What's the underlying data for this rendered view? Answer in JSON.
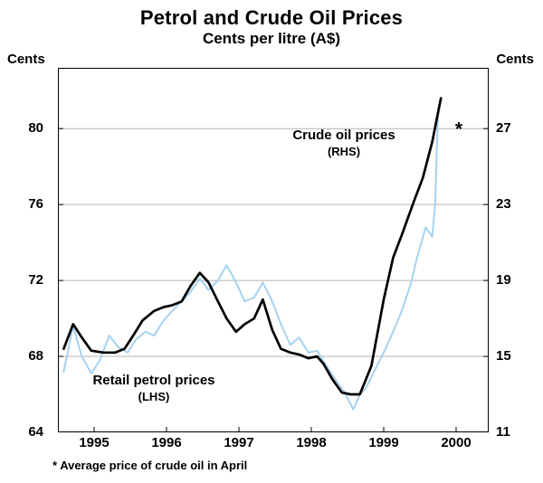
{
  "chart_data": {
    "type": "line",
    "title": "Petrol and Crude Oil Prices",
    "subtitle": "Cents per litre (A$)",
    "footnote": "* Average price of crude oil in April",
    "grid": {
      "show_horizontal": true,
      "color": "#b3b3b3"
    },
    "frame_color": "#000000",
    "x_axis": {
      "range": [
        1994.5,
        2000.45
      ],
      "tick_values": [
        1995,
        1996,
        1997,
        1998,
        1999,
        2000
      ],
      "tick_labels": [
        "1995",
        "1996",
        "1997",
        "1998",
        "1999",
        "2000"
      ]
    },
    "left_axis": {
      "label": "Cents",
      "range": [
        64,
        83.2
      ],
      "ticks": [
        64,
        68,
        72,
        76,
        80
      ]
    },
    "right_axis": {
      "label": "Cents",
      "range": [
        11,
        30.2
      ],
      "ticks": [
        11,
        15,
        19,
        23,
        27
      ]
    },
    "series": [
      {
        "name": "Crude oil prices (RHS)",
        "axis": "right",
        "color": "#a6d2ef",
        "stroke_width": 2,
        "points": [
          [
            1994.58,
            14.2
          ],
          [
            1994.71,
            16.6
          ],
          [
            1994.83,
            15.0
          ],
          [
            1994.96,
            14.1
          ],
          [
            1995.08,
            14.8
          ],
          [
            1995.21,
            16.1
          ],
          [
            1995.33,
            15.5
          ],
          [
            1995.46,
            15.2
          ],
          [
            1995.58,
            15.9
          ],
          [
            1995.71,
            16.3
          ],
          [
            1995.83,
            16.1
          ],
          [
            1995.96,
            16.9
          ],
          [
            1996.08,
            17.4
          ],
          [
            1996.21,
            17.9
          ],
          [
            1996.33,
            18.4
          ],
          [
            1996.46,
            19.1
          ],
          [
            1996.58,
            18.5
          ],
          [
            1996.71,
            19.0
          ],
          [
            1996.83,
            19.8
          ],
          [
            1996.96,
            18.9
          ],
          [
            1997.08,
            17.9
          ],
          [
            1997.21,
            18.1
          ],
          [
            1997.33,
            18.9
          ],
          [
            1997.46,
            17.9
          ],
          [
            1997.58,
            16.7
          ],
          [
            1997.71,
            15.6
          ],
          [
            1997.83,
            16.0
          ],
          [
            1997.96,
            15.2
          ],
          [
            1998.08,
            15.3
          ],
          [
            1998.21,
            14.5
          ],
          [
            1998.33,
            13.8
          ],
          [
            1998.46,
            13.1
          ],
          [
            1998.58,
            12.2
          ],
          [
            1998.67,
            13.0
          ],
          [
            1998.75,
            13.3
          ],
          [
            1998.88,
            14.3
          ],
          [
            1999.0,
            15.2
          ],
          [
            1999.13,
            16.3
          ],
          [
            1999.25,
            17.4
          ],
          [
            1999.38,
            18.9
          ],
          [
            1999.46,
            20.2
          ],
          [
            1999.58,
            21.8
          ],
          [
            1999.67,
            21.3
          ],
          [
            1999.71,
            23.0
          ],
          [
            1999.75,
            27.9
          ]
        ]
      },
      {
        "name": "Retail petrol prices (LHS)",
        "axis": "left",
        "color": "#000000",
        "stroke_width": 2.7,
        "points": [
          [
            1994.58,
            68.4
          ],
          [
            1994.71,
            69.7
          ],
          [
            1994.83,
            69.0
          ],
          [
            1994.96,
            68.3
          ],
          [
            1995.13,
            68.2
          ],
          [
            1995.29,
            68.2
          ],
          [
            1995.42,
            68.4
          ],
          [
            1995.54,
            69.1
          ],
          [
            1995.67,
            69.9
          ],
          [
            1995.83,
            70.4
          ],
          [
            1995.96,
            70.6
          ],
          [
            1996.08,
            70.7
          ],
          [
            1996.21,
            70.9
          ],
          [
            1996.33,
            71.7
          ],
          [
            1996.46,
            72.4
          ],
          [
            1996.58,
            71.9
          ],
          [
            1996.71,
            70.9
          ],
          [
            1996.83,
            70.0
          ],
          [
            1996.96,
            69.3
          ],
          [
            1997.08,
            69.7
          ],
          [
            1997.21,
            70.0
          ],
          [
            1997.33,
            71.0
          ],
          [
            1997.46,
            69.4
          ],
          [
            1997.58,
            68.4
          ],
          [
            1997.71,
            68.2
          ],
          [
            1997.83,
            68.1
          ],
          [
            1997.96,
            67.9
          ],
          [
            1998.08,
            68.0
          ],
          [
            1998.17,
            67.6
          ],
          [
            1998.29,
            66.8
          ],
          [
            1998.42,
            66.1
          ],
          [
            1998.54,
            66.0
          ],
          [
            1998.67,
            66.0
          ],
          [
            1998.83,
            67.5
          ],
          [
            1999.0,
            71.0
          ],
          [
            1999.13,
            73.2
          ],
          [
            1999.25,
            74.4
          ],
          [
            1999.42,
            76.2
          ],
          [
            1999.54,
            77.4
          ],
          [
            1999.67,
            79.3
          ],
          [
            1999.79,
            81.6
          ]
        ]
      }
    ],
    "annotations": {
      "crude": {
        "text": "Crude oil prices",
        "sub": "(RHS)"
      },
      "petrol": {
        "text": "Retail petrol prices",
        "sub": "(LHS)"
      },
      "asterisk": {
        "text": "*"
      }
    }
  }
}
